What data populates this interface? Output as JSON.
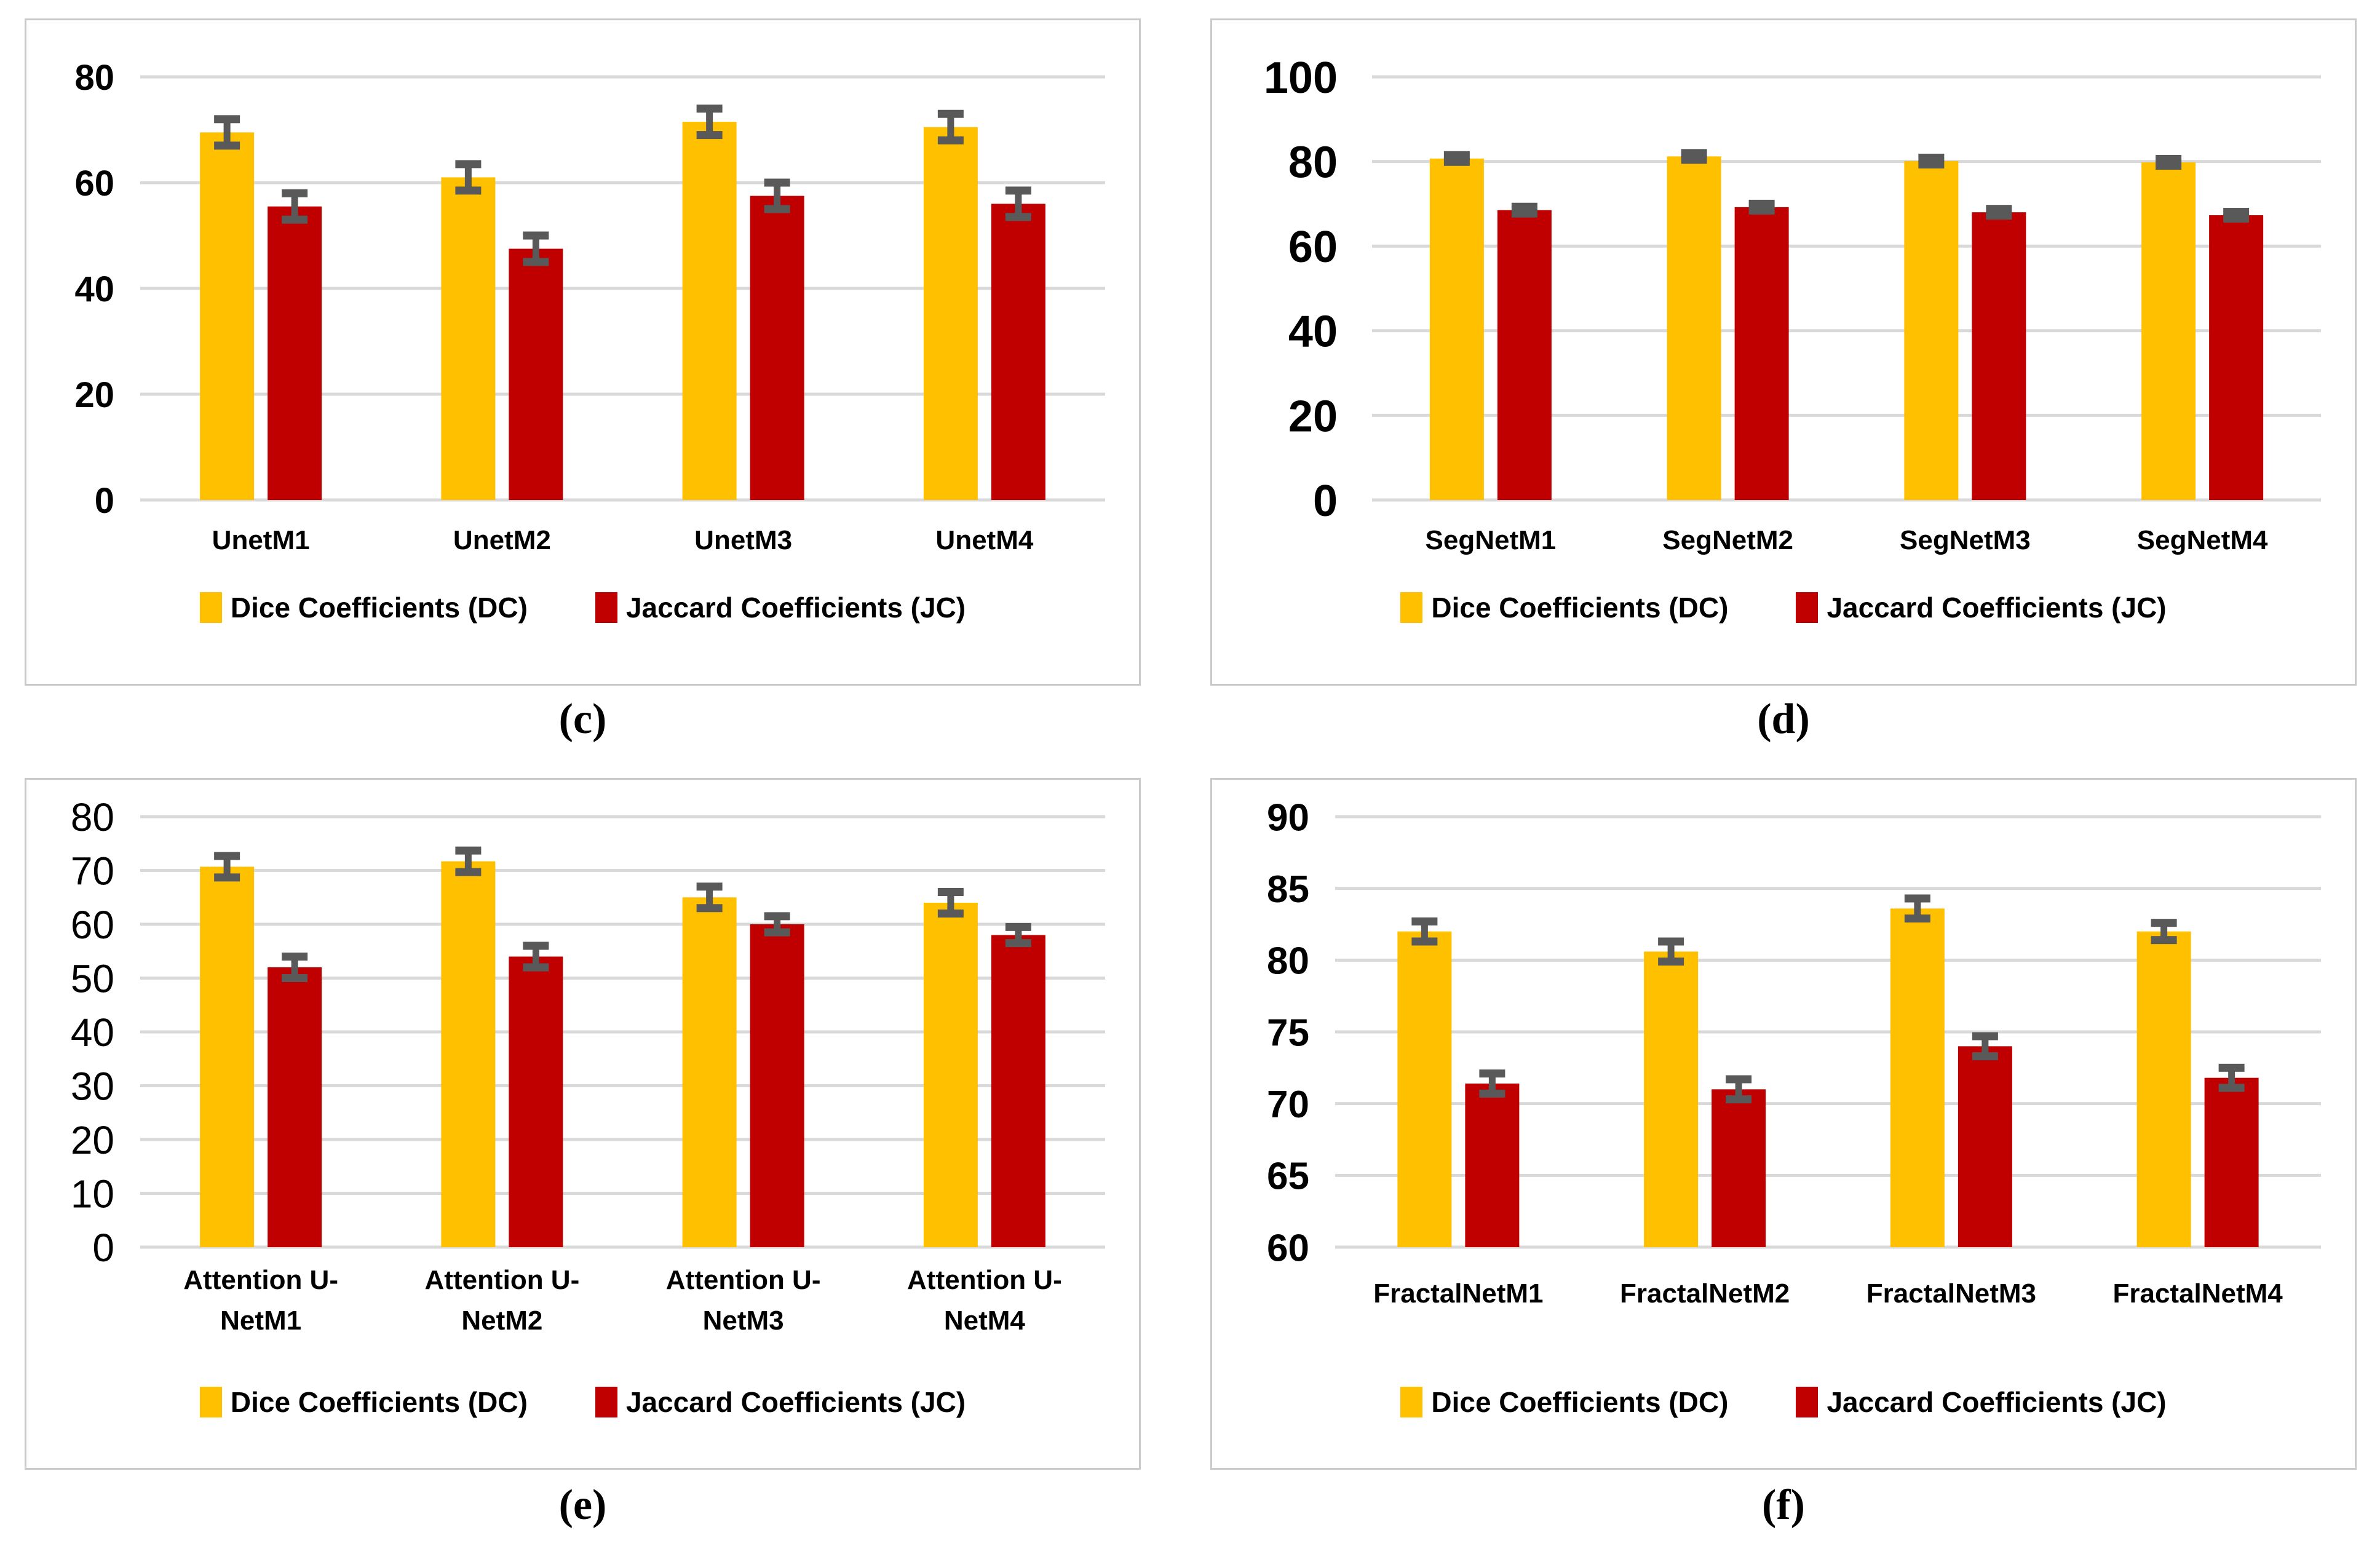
{
  "figure": {
    "panel_labels": [
      "(c)",
      "(d)",
      "(e)",
      "(f)"
    ]
  },
  "colors": {
    "dc_yellow": "#FFC000",
    "jc_red": "#C00000",
    "error_bar_gray": "#595959",
    "gridline": "#D9D9D9",
    "panel_border": "#C9C9C9",
    "text": "#000000"
  },
  "legend": {
    "dc_label": "Dice Coefficients (DC)",
    "jc_label": "Jaccard Coefficients (JC)",
    "position": "bottom"
  },
  "chart_data": [
    {
      "id": "c",
      "type": "bar",
      "panel_label": "(c)",
      "title": "",
      "xlabel": "",
      "ylabel": "",
      "categories": [
        "UnetM1",
        "UnetM2",
        "UnetM3",
        "UnetM4"
      ],
      "series": [
        {
          "name": "Dice Coefficients (DC)",
          "color": "#FFC000",
          "values": [
            69.5,
            61,
            71.5,
            70.5
          ],
          "errors": [
            2.5,
            2.5,
            2.5,
            2.5
          ]
        },
        {
          "name": "Jaccard Coefficients (JC)",
          "color": "#C00000",
          "values": [
            55.5,
            47.5,
            57.5,
            56
          ],
          "errors": [
            2.5,
            2.5,
            2.5,
            2.5
          ]
        }
      ],
      "ylim": [
        0,
        80
      ],
      "yticks": [
        0,
        20,
        40,
        60,
        80
      ],
      "grid": true,
      "legend_position": "bottom"
    },
    {
      "id": "d",
      "type": "bar",
      "panel_label": "(d)",
      "title": "",
      "xlabel": "",
      "ylabel": "",
      "categories": [
        "SegNetM1",
        "SegNetM2",
        "SegNetM3",
        "SegNetM4"
      ],
      "series": [
        {
          "name": "Dice Coefficients (DC)",
          "color": "#FFC000",
          "values": [
            80.7,
            81.2,
            80.1,
            79.8
          ],
          "errors": [
            0.8,
            0.8,
            0.8,
            0.8
          ]
        },
        {
          "name": "Jaccard Coefficients (JC)",
          "color": "#C00000",
          "values": [
            68.5,
            69.2,
            68,
            67.3
          ],
          "errors": [
            0.8,
            0.8,
            0.8,
            0.8
          ]
        }
      ],
      "ylim": [
        0,
        100
      ],
      "yticks": [
        0,
        20,
        40,
        60,
        80,
        100
      ],
      "grid": true,
      "legend_position": "bottom"
    },
    {
      "id": "e",
      "type": "bar",
      "panel_label": "(e)",
      "title": "",
      "xlabel": "",
      "ylabel": "",
      "categories": [
        "Attention U-\nNetM1",
        "Attention U-\nNetM2",
        "Attention U-\nNetM3",
        "Attention U-\nNetM4"
      ],
      "series": [
        {
          "name": "Dice Coefficients (DC)",
          "color": "#FFC000",
          "values": [
            70.7,
            71.7,
            65,
            64
          ],
          "errors": [
            2,
            2,
            2,
            2
          ]
        },
        {
          "name": "Jaccard Coefficients (JC)",
          "color": "#C00000",
          "values": [
            52,
            54,
            60,
            58
          ],
          "errors": [
            2,
            2,
            1.5,
            1.5
          ]
        }
      ],
      "ylim": [
        0,
        80
      ],
      "yticks": [
        0,
        10,
        20,
        30,
        40,
        50,
        60,
        70,
        80
      ],
      "grid": true,
      "legend_position": "bottom"
    },
    {
      "id": "f",
      "type": "bar",
      "panel_label": "(f)",
      "title": "",
      "xlabel": "",
      "ylabel": "",
      "categories": [
        "FractalNetM1",
        "FractalNetM2",
        "FractalNetM3",
        "FractalNetM4"
      ],
      "series": [
        {
          "name": "Dice Coefficients (DC)",
          "color": "#FFC000",
          "values": [
            82,
            80.6,
            83.6,
            82
          ],
          "errors": [
            0.7,
            0.7,
            0.7,
            0.6
          ]
        },
        {
          "name": "Jaccard Coefficients (JC)",
          "color": "#C00000",
          "values": [
            71.4,
            71,
            74,
            71.8
          ],
          "errors": [
            0.7,
            0.7,
            0.7,
            0.7
          ]
        }
      ],
      "ylim": [
        60,
        90
      ],
      "yticks": [
        60,
        65,
        70,
        75,
        80,
        85,
        90
      ],
      "grid": true,
      "legend_position": "bottom"
    }
  ]
}
